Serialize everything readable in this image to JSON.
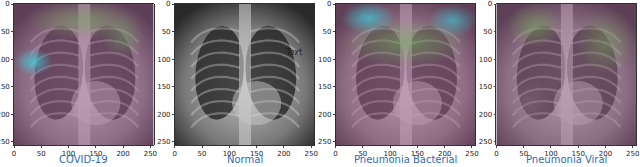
{
  "chart_data": [
    {
      "type": "image",
      "title": "COVID-19",
      "xlim": [
        0,
        256
      ],
      "ylim": [
        256,
        0
      ],
      "xticks": [
        0,
        50,
        100,
        150,
        200,
        250
      ],
      "yticks": [
        0,
        50,
        100,
        150,
        200,
        250
      ]
    },
    {
      "type": "image",
      "title": "Normal",
      "xlim": [
        0,
        256
      ],
      "ylim": [
        256,
        0
      ],
      "xticks": [
        0,
        50,
        100,
        150,
        200,
        250
      ],
      "yticks": [
        0,
        50,
        100,
        150,
        200,
        250
      ],
      "annotations": [
        {
          "text": "Text",
          "x": 218,
          "y": 88
        }
      ]
    },
    {
      "type": "image",
      "title": "Pneumonia Bacterial",
      "xlim": [
        0,
        256
      ],
      "ylim": [
        256,
        0
      ],
      "xticks": [
        0,
        50,
        100,
        150,
        200,
        250
      ],
      "yticks": [
        0,
        50,
        100,
        150,
        200,
        250
      ]
    },
    {
      "type": "image",
      "title": "Pneumonia Viral",
      "xlim": [
        0,
        256
      ],
      "ylim": [
        256,
        0
      ],
      "xticks": [
        0,
        50,
        100,
        150,
        200,
        250
      ],
      "yticks": [
        0,
        50,
        100,
        150,
        200,
        250
      ]
    }
  ]
}
